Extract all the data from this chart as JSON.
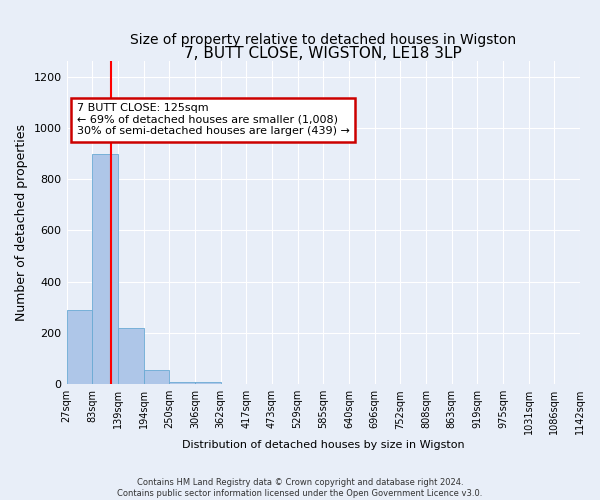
{
  "title": "7, BUTT CLOSE, WIGSTON, LE18 3LP",
  "subtitle": "Size of property relative to detached houses in Wigston",
  "xlabel": "Distribution of detached houses by size in Wigston",
  "ylabel": "Number of detached properties",
  "bin_labels": [
    "27sqm",
    "83sqm",
    "139sqm",
    "194sqm",
    "250sqm",
    "306sqm",
    "362sqm",
    "417sqm",
    "473sqm",
    "529sqm",
    "585sqm",
    "640sqm",
    "696sqm",
    "752sqm",
    "808sqm",
    "863sqm",
    "919sqm",
    "975sqm",
    "1031sqm",
    "1086sqm",
    "1142sqm"
  ],
  "bar_values": [
    290,
    900,
    220,
    55,
    10,
    10,
    0,
    0,
    0,
    0,
    0,
    0,
    0,
    0,
    0,
    0,
    0,
    0,
    0,
    0
  ],
  "bar_color": "#aec6e8",
  "bar_edge_color": "#6aaad4",
  "red_line_x": 1.75,
  "ylim": [
    0,
    1260
  ],
  "yticks": [
    0,
    200,
    400,
    600,
    800,
    1000,
    1200
  ],
  "annotation_text": "7 BUTT CLOSE: 125sqm\n← 69% of detached houses are smaller (1,008)\n30% of semi-detached houses are larger (439) →",
  "annotation_box_color": "#ffffff",
  "annotation_box_edge_color": "#cc0000",
  "footer_text": "Contains HM Land Registry data © Crown copyright and database right 2024.\nContains public sector information licensed under the Open Government Licence v3.0.",
  "background_color": "#e8eef8",
  "grid_color": "#ffffff",
  "title_fontsize": 11,
  "tick_fontsize": 7,
  "ylabel_fontsize": 9,
  "xlabel_fontsize": 8
}
